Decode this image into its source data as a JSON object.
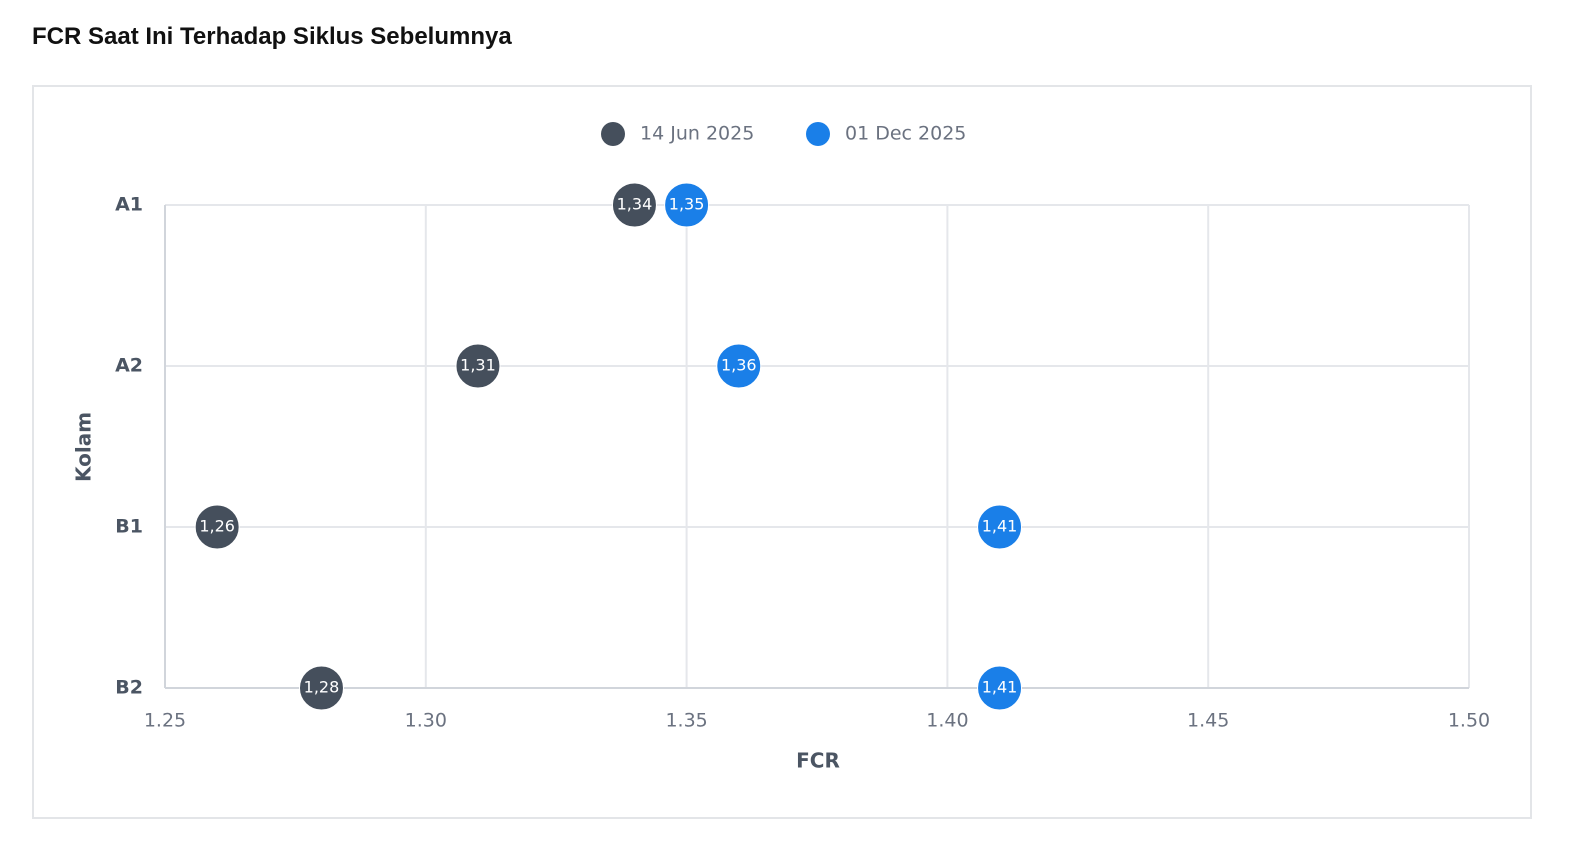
{
  "chart_data": {
    "type": "scatter",
    "title": "FCR Saat Ini Terhadap Siklus Sebelumnya",
    "x_label": "FCR",
    "y_label": "Kolam",
    "categories": [
      "A1",
      "A2",
      "B1",
      "B2"
    ],
    "series": [
      {
        "name": "14 Jun 2025",
        "color": "#454f5c",
        "values": [
          1.34,
          1.31,
          1.26,
          1.28
        ],
        "value_labels": [
          "1,34",
          "1,31",
          "1,26",
          "1,28"
        ]
      },
      {
        "name": "01 Dec 2025",
        "color": "#1a7fe8",
        "values": [
          1.35,
          1.36,
          1.41,
          1.41
        ],
        "value_labels": [
          "1,35",
          "1,36",
          "1,41",
          "1,41"
        ]
      }
    ],
    "xlim": [
      1.25,
      1.5
    ],
    "xticks": [
      1.25,
      {
        "value": 1.3,
        "label": "1.30"
      },
      1.35,
      {
        "value": 1.4,
        "label": "1.40"
      },
      1.45,
      {
        "value": 1.5,
        "label": "1.50"
      }
    ],
    "grid": true,
    "legend": "top"
  }
}
